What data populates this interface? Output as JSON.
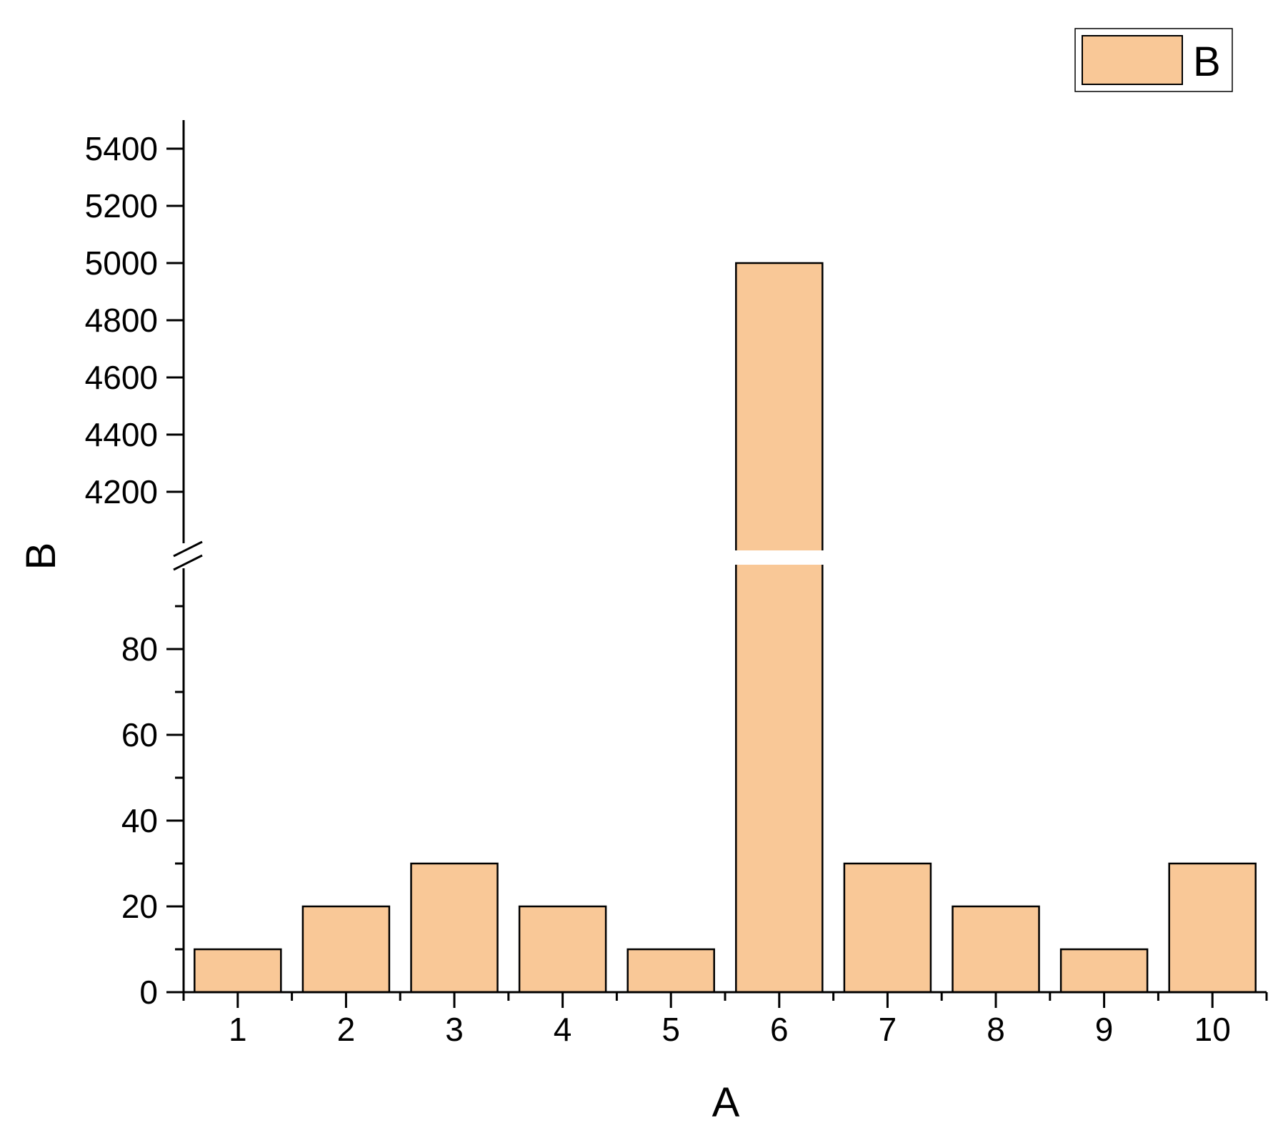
{
  "chart_data": {
    "type": "bar",
    "categories": [
      "1",
      "2",
      "3",
      "4",
      "5",
      "6",
      "7",
      "8",
      "9",
      "10"
    ],
    "series": [
      {
        "name": "B",
        "values": [
          10,
          20,
          30,
          20,
          10,
          5000,
          30,
          20,
          10,
          30
        ],
        "color": "#F9C897"
      }
    ],
    "xlabel": "A",
    "ylabel": "B",
    "y_axis_break": {
      "lower_range": [
        0,
        98
      ],
      "upper_range": [
        4100,
        5500
      ]
    },
    "y_ticks_lower": [
      0,
      20,
      40,
      60,
      80
    ],
    "y_ticks_upper": [
      4200,
      4400,
      4600,
      4800,
      5000,
      5200,
      5400
    ],
    "legend": {
      "position": "top-right",
      "entries": [
        "B"
      ]
    },
    "grid": false,
    "colors": {
      "bar_fill": "#F9C897",
      "bar_stroke": "#000000"
    }
  }
}
